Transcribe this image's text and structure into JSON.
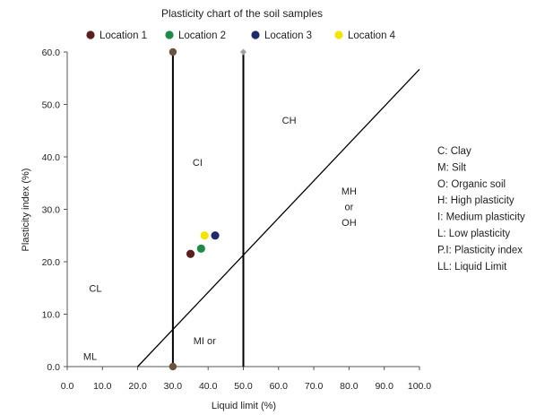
{
  "chart_data": {
    "type": "scatter",
    "title": "Plasticity chart of the soil samples",
    "xlabel": "Liquid limit (%)",
    "ylabel": "Plasticity index (%)",
    "xlim": [
      0,
      100
    ],
    "ylim": [
      0,
      60
    ],
    "x_ticks": [
      "0.0",
      "10.0",
      "20.0",
      "30.0",
      "40.0",
      "50.0",
      "60.0",
      "70.0",
      "80.0",
      "90.0",
      "100.0"
    ],
    "y_ticks": [
      "0.0",
      "10.0",
      "20.0",
      "30.0",
      "40.0",
      "50.0",
      "60.0"
    ],
    "grid": false,
    "legend_position": "top",
    "series": [
      {
        "name": "Location 1",
        "color": "#5c1f1f",
        "x": [
          35
        ],
        "y": [
          21.5
        ]
      },
      {
        "name": "Location 2",
        "color": "#1e8a4a",
        "x": [
          38
        ],
        "y": [
          22.5
        ]
      },
      {
        "name": "Location 3",
        "color": "#1f2a6b",
        "x": [
          42
        ],
        "y": [
          25
        ]
      },
      {
        "name": "Location 4",
        "color": "#f2e600",
        "x": [
          39
        ],
        "y": [
          25
        ]
      }
    ],
    "reference_lines": [
      {
        "kind": "vertical",
        "x": 30,
        "y_from": 0,
        "y_to": 60,
        "color": "#000000",
        "end_marker_color": "#6b5340"
      },
      {
        "kind": "vertical",
        "x": 50,
        "y_from": 0,
        "y_to": 60,
        "color": "#000000",
        "end_marker_color": "#a0a0a8"
      },
      {
        "kind": "a_line",
        "x_from": 20,
        "y_from": 0,
        "x_to": 100,
        "y_to": 56.7,
        "color": "#000000"
      }
    ],
    "zone_labels": [
      {
        "text": "CH",
        "x": 63,
        "y": 47
      },
      {
        "text": "CI",
        "x": 37,
        "y": 39
      },
      {
        "text": "MH",
        "x": 80,
        "y": 33.5
      },
      {
        "text": "or",
        "x": 80,
        "y": 30.5
      },
      {
        "text": "OH",
        "x": 80,
        "y": 27.5
      },
      {
        "text": "CL",
        "x": 8,
        "y": 15
      },
      {
        "text": "MI  or",
        "x": 39,
        "y": 5
      },
      {
        "text": "ML",
        "x": 6.5,
        "y": 2
      }
    ],
    "side_notes": [
      "C: Clay",
      "M: Silt",
      "O: Organic soil",
      "H: High plasticity",
      "I: Medium plasticity",
      "L: Low plasticity",
      "P.I: Plasticity index",
      "LL: Liquid Limit"
    ]
  }
}
